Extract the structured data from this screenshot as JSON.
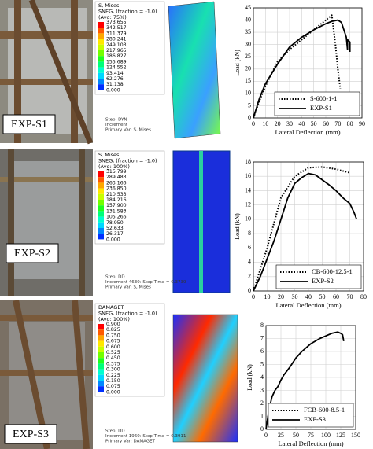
{
  "panels": [
    {
      "label": "EXP-S1",
      "legend": {
        "title": [
          "S, Mises",
          "SNEG, (fraction = -1.0)",
          "(Avg: 75%)"
        ],
        "values": [
          "373.655",
          "342.517",
          "311.379",
          "280.241",
          "249.103",
          "217.965",
          "186.827",
          "155.689",
          "124.552",
          "93.414",
          "62.276",
          "31.138",
          "0.000"
        ]
      },
      "step": [
        "Step: DYN",
        "Increment",
        "Primary Var: S, Mises"
      ]
    },
    {
      "label": "EXP-S2",
      "legend": {
        "title": [
          "S, Mises",
          "SNEG, (fraction = -1.0)",
          "(Avg: 100%)"
        ],
        "values": [
          "315.799",
          "289.483",
          "263.166",
          "236.850",
          "210.533",
          "184.216",
          "157.900",
          "131.583",
          "105.266",
          "78.950",
          "52.633",
          "26.317",
          "0.000"
        ]
      },
      "step": [
        "Step: DD",
        "Increment    4630: Step Time =    0.3739",
        "Primary Var: S, Mises"
      ]
    },
    {
      "label": "EXP-S3",
      "legend": {
        "title": [
          "DAMAGET",
          "SNEG, (fraction = -1.0)",
          "(Avg: 100%)"
        ],
        "values": [
          "0.900",
          "0.825",
          "0.750",
          "0.675",
          "0.600",
          "0.525",
          "0.450",
          "0.375",
          "0.300",
          "0.225",
          "0.150",
          "0.075",
          "0.000"
        ]
      },
      "step": [
        "Step: DD",
        "Increment    1960: Step Time =    0.3911",
        "Primary Var: DAMAGET"
      ]
    }
  ],
  "chart_data": [
    {
      "type": "line",
      "xlabel": "Lateral Deflection (mm)",
      "ylabel": "Load (kN)",
      "xlim": [
        0,
        90
      ],
      "ylim": [
        0,
        45
      ],
      "xticks": [
        0,
        10,
        20,
        30,
        40,
        50,
        60,
        70,
        80,
        90
      ],
      "yticks": [
        0,
        5,
        10,
        15,
        20,
        25,
        30,
        35,
        40,
        45
      ],
      "legend": "lower right",
      "series": [
        {
          "name": "S-600-1-1",
          "color": "#000000",
          "style": "dotted",
          "x": [
            0,
            5,
            10,
            20,
            30,
            40,
            50,
            60,
            65,
            68,
            70,
            72
          ],
          "values": [
            0,
            7,
            13,
            23,
            28,
            32,
            36,
            40,
            42,
            30,
            20,
            12
          ]
        },
        {
          "name": "EXP-S1",
          "color": "#000000",
          "style": "solid",
          "x": [
            0,
            5,
            10,
            20,
            30,
            40,
            50,
            60,
            65,
            70,
            73,
            75,
            77,
            78,
            78,
            80,
            80
          ],
          "values": [
            0,
            8,
            14,
            22,
            29,
            33,
            36,
            38.5,
            39.5,
            40,
            39,
            36,
            33,
            28,
            32,
            31,
            27
          ]
        }
      ]
    },
    {
      "type": "line",
      "xlabel": "Lateral Deflection (mm)",
      "ylabel": "Load (kN)",
      "xlim": [
        0,
        80
      ],
      "ylim": [
        0,
        18
      ],
      "xticks": [
        0,
        10,
        20,
        30,
        40,
        50,
        60,
        70,
        80
      ],
      "yticks": [
        0,
        2,
        4,
        6,
        8,
        10,
        12,
        14,
        16,
        18
      ],
      "legend": "lower right",
      "series": [
        {
          "name": "CB-600-12.5-1",
          "color": "#000000",
          "style": "dotted",
          "x": [
            0,
            5,
            10,
            15,
            20,
            25,
            30,
            40,
            50,
            60,
            70
          ],
          "values": [
            0,
            3,
            6,
            9.5,
            13,
            14.5,
            16,
            17.2,
            17.3,
            17,
            16.5
          ]
        },
        {
          "name": "EXP-S2",
          "color": "#000000",
          "style": "solid",
          "x": [
            0,
            5,
            10,
            15,
            20,
            25,
            30,
            35,
            40,
            45,
            50,
            55,
            60,
            65,
            70,
            73,
            75
          ],
          "values": [
            0,
            2,
            4.5,
            7,
            10,
            13,
            15,
            15.8,
            16.4,
            16.2,
            15.5,
            14.8,
            14,
            13,
            12.2,
            11,
            10
          ]
        }
      ]
    },
    {
      "type": "line",
      "xlabel": "Lateral Deflection (mm)",
      "ylabel": "Load (kN)",
      "xlim": [
        0,
        150
      ],
      "ylim": [
        0,
        8
      ],
      "xticks": [
        0,
        25,
        50,
        75,
        100,
        125,
        150
      ],
      "yticks": [
        0,
        1,
        2,
        3,
        4,
        5,
        6,
        7,
        8
      ],
      "legend": "lower right",
      "series": [
        {
          "name": "FCB-600-8.5-1",
          "color": "#000000",
          "style": "dotted",
          "x": [],
          "values": []
        },
        {
          "name": "EXP-S3",
          "color": "#000000",
          "style": "solid",
          "x": [
            0,
            5,
            10,
            15,
            20,
            25,
            30,
            40,
            50,
            60,
            75,
            90,
            100,
            110,
            120,
            125,
            128,
            130
          ],
          "values": [
            0,
            1.5,
            2.5,
            3,
            3.3,
            3.8,
            4.2,
            4.8,
            5.5,
            6,
            6.6,
            7,
            7.2,
            7.4,
            7.5,
            7.4,
            7.3,
            6.8
          ]
        }
      ]
    }
  ]
}
